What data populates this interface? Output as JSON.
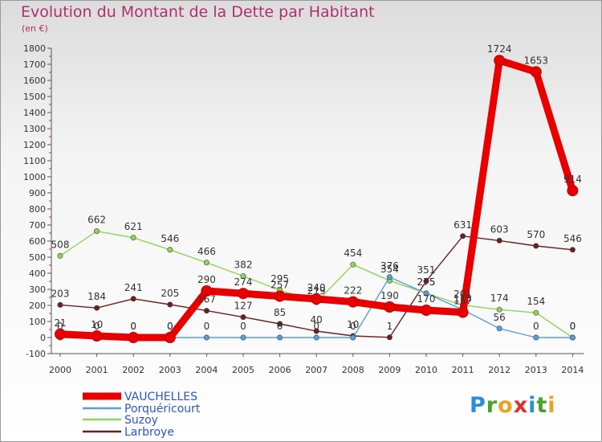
{
  "header": {
    "title": "Evolution du Montant de la Dette par Habitant",
    "unit": "(en €)"
  },
  "logo": {
    "letters": [
      "P",
      "r",
      "o",
      "x",
      "i",
      "t",
      "i"
    ],
    "colors": [
      "#2a8fd6",
      "#4aa02c",
      "#f0a020",
      "#e0302a",
      "#2a8fd6",
      "#4aa02c",
      "#f0a020"
    ]
  },
  "chart_data": {
    "type": "line",
    "title": "Evolution du Montant de la Dette par Habitant",
    "ylabel": "(en €)",
    "xlabel": "",
    "x": [
      "2000",
      "2001",
      "2002",
      "2003",
      "2004",
      "2005",
      "2006",
      "2007",
      "2008",
      "2009",
      "2010",
      "2011",
      "2012",
      "2013",
      "2014"
    ],
    "ylim": [
      -100,
      1800
    ],
    "yticks": [
      -100,
      0,
      100,
      200,
      300,
      400,
      500,
      600,
      700,
      800,
      900,
      1000,
      1100,
      1200,
      1300,
      1400,
      1500,
      1600,
      1700,
      1800
    ],
    "grid": false,
    "legend_position": "bottom-left",
    "series": [
      {
        "name": "VAUCHELLES",
        "color": "#e80000",
        "values": [
          21,
          10,
          0,
          0,
          290,
          274,
          257,
          240,
          222,
          190,
          170,
          157,
          1724,
          1653,
          914
        ],
        "labels": [
          "21",
          "10",
          "0",
          "0",
          "290",
          "274",
          "257",
          "240",
          "222",
          "190",
          "170",
          "157",
          "1724",
          "1653",
          "914"
        ]
      },
      {
        "name": "Porquéricourt",
        "color": "#5a9fd4",
        "values": [
          0,
          0,
          0,
          0,
          0,
          0,
          0,
          0,
          0,
          376,
          275,
          173,
          56,
          0,
          0
        ],
        "labels": [
          "0",
          "0",
          "0",
          "0",
          "0",
          "0",
          "0",
          "0",
          "0",
          "376",
          "275",
          "173",
          "56",
          "0",
          "0"
        ]
      },
      {
        "name": "Suzoy",
        "color": "#8ed45a",
        "values": [
          508,
          662,
          621,
          546,
          466,
          382,
          295,
          219,
          454,
          354,
          275,
          201,
          174,
          154,
          0
        ],
        "labels": [
          "508",
          "662",
          "621",
          "546",
          "466",
          "382",
          "295",
          "219",
          "454",
          "354",
          "275",
          "201",
          "174",
          "154",
          "0"
        ]
      },
      {
        "name": "Larbroye",
        "color": "#6b2020",
        "values": [
          203,
          184,
          241,
          205,
          167,
          127,
          85,
          40,
          10,
          1,
          351,
          631,
          603,
          570,
          546
        ],
        "labels": [
          "203",
          "184",
          "241",
          "205",
          "167",
          "127",
          "85",
          "40",
          "10",
          "1",
          "351",
          "631",
          "603",
          "570",
          "546"
        ]
      }
    ]
  }
}
